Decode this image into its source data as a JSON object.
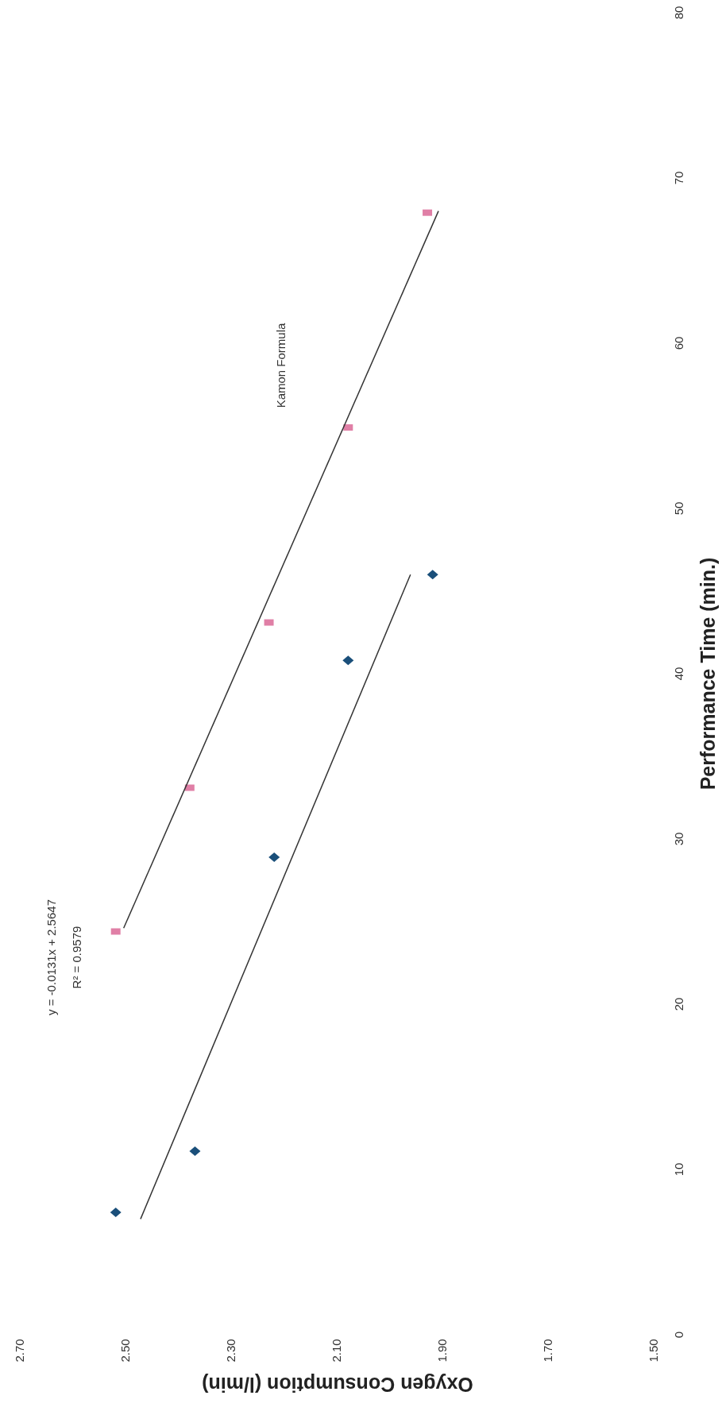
{
  "chart_data": {
    "type": "scatter",
    "xlabel": "Oxygen Consumption (l/min)",
    "ylabel": "Performance Time (min.)",
    "xlim": [
      2.7,
      1.5
    ],
    "xticks": [
      {
        "value": 2.7,
        "label": "2.70"
      },
      {
        "value": 2.5,
        "label": "2.50"
      },
      {
        "value": 2.3,
        "label": "2.30"
      },
      {
        "value": 2.1,
        "label": "2.10"
      },
      {
        "value": 1.9,
        "label": "1.90"
      },
      {
        "value": 1.7,
        "label": "1.70"
      },
      {
        "value": 1.5,
        "label": "1.50"
      }
    ],
    "ylim": [
      0,
      80
    ],
    "yticks": [
      0,
      10,
      20,
      30,
      40,
      50,
      60,
      70,
      80
    ],
    "series": [
      {
        "color": "#1a4f7a",
        "marker": "diamond",
        "x": [
          2.52,
          2.37,
          2.22,
          2.08,
          1.92
        ],
        "values": [
          7.4,
          11.1,
          28.9,
          40.8,
          46.0
        ]
      },
      {
        "color": "#e07fa6",
        "marker": "square",
        "x": [
          2.52,
          2.38,
          2.23,
          2.08,
          1.93
        ],
        "values": [
          24.4,
          33.1,
          43.1,
          54.9,
          67.9
        ]
      },
      {
        "type": "line",
        "color": "#333333",
        "x": [
          2.473,
          1.962
        ],
        "values": [
          7,
          46
        ]
      },
      {
        "type": "line",
        "color": "#333333",
        "x": [
          2.505,
          1.909
        ],
        "values": [
          24.6,
          68
        ]
      }
    ],
    "annotations": [
      "y = -0.0131x + 2.5647",
      "R² = 0.9579",
      "Kamon Formula"
    ]
  }
}
